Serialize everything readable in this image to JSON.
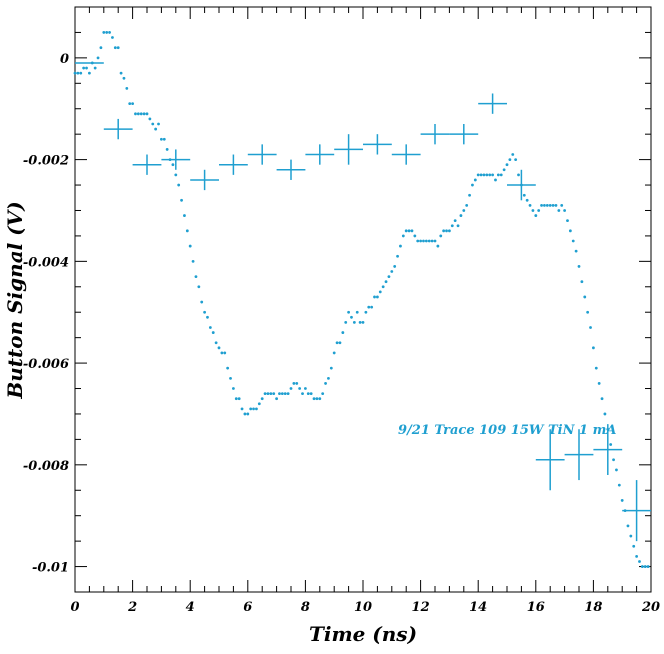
{
  "chart_data": {
    "type": "scatter",
    "title": "",
    "xlabel": "Time (ns)",
    "ylabel": "Button Signal (V)",
    "xlim": [
      0,
      20
    ],
    "ylim": [
      -0.0105,
      0.001
    ],
    "xticks": [
      0,
      2,
      4,
      6,
      8,
      10,
      12,
      14,
      16,
      18,
      20
    ],
    "xtick_labels": [
      "0",
      "2",
      "4",
      "6",
      "8",
      "10",
      "12",
      "14",
      "16",
      "18",
      "20"
    ],
    "yticks": [
      0,
      -0.002,
      -0.004,
      -0.006,
      -0.008,
      -0.01
    ],
    "ytick_labels": [
      "0",
      "-0.002",
      "-0.004",
      "-0.006",
      "-0.008",
      "-0.01"
    ],
    "grid": false,
    "color": "#1f9fd0",
    "annotation": "9/21 Trace 109 15W TiN 1 mA",
    "series": [
      {
        "style": "dots",
        "points": [
          [
            0.0,
            -0.0003
          ],
          [
            0.1,
            -0.0003
          ],
          [
            0.2,
            -0.0003
          ],
          [
            0.3,
            -0.0002
          ],
          [
            0.4,
            -0.0002
          ],
          [
            0.5,
            -0.0003
          ],
          [
            0.6,
            -0.0001
          ],
          [
            0.7,
            -0.0002
          ],
          [
            0.8,
            0.0
          ],
          [
            0.9,
            0.0002
          ],
          [
            1.0,
            0.0005
          ],
          [
            1.1,
            0.0005
          ],
          [
            1.2,
            0.0005
          ],
          [
            1.3,
            0.0004
          ],
          [
            1.4,
            0.0002
          ],
          [
            1.5,
            0.0002
          ],
          [
            1.6,
            -0.0003
          ],
          [
            1.7,
            -0.0004
          ],
          [
            1.8,
            -0.0006
          ],
          [
            1.9,
            -0.0009
          ],
          [
            2.0,
            -0.0009
          ],
          [
            2.1,
            -0.0011
          ],
          [
            2.2,
            -0.0011
          ],
          [
            2.3,
            -0.0011
          ],
          [
            2.4,
            -0.0011
          ],
          [
            2.5,
            -0.0011
          ],
          [
            2.6,
            -0.0012
          ],
          [
            2.7,
            -0.0013
          ],
          [
            2.8,
            -0.0014
          ],
          [
            2.9,
            -0.0013
          ],
          [
            3.0,
            -0.0016
          ],
          [
            3.1,
            -0.0016
          ],
          [
            3.2,
            -0.0018
          ],
          [
            3.3,
            -0.002
          ],
          [
            3.4,
            -0.0021
          ],
          [
            3.5,
            -0.0023
          ],
          [
            3.6,
            -0.0025
          ],
          [
            3.7,
            -0.0028
          ],
          [
            3.8,
            -0.0031
          ],
          [
            3.9,
            -0.0034
          ],
          [
            4.0,
            -0.0037
          ],
          [
            4.1,
            -0.004
          ],
          [
            4.2,
            -0.0043
          ],
          [
            4.3,
            -0.0045
          ],
          [
            4.4,
            -0.0048
          ],
          [
            4.5,
            -0.005
          ],
          [
            4.6,
            -0.0051
          ],
          [
            4.7,
            -0.0053
          ],
          [
            4.8,
            -0.0054
          ],
          [
            4.9,
            -0.0056
          ],
          [
            5.0,
            -0.0057
          ],
          [
            5.1,
            -0.0058
          ],
          [
            5.2,
            -0.0058
          ],
          [
            5.3,
            -0.0061
          ],
          [
            5.4,
            -0.0063
          ],
          [
            5.5,
            -0.0065
          ],
          [
            5.6,
            -0.0067
          ],
          [
            5.7,
            -0.0067
          ],
          [
            5.8,
            -0.0069
          ],
          [
            5.9,
            -0.007
          ],
          [
            6.0,
            -0.007
          ],
          [
            6.1,
            -0.0069
          ],
          [
            6.2,
            -0.0069
          ],
          [
            6.3,
            -0.0069
          ],
          [
            6.4,
            -0.0068
          ],
          [
            6.5,
            -0.0067
          ],
          [
            6.6,
            -0.0066
          ],
          [
            6.7,
            -0.0066
          ],
          [
            6.8,
            -0.0066
          ],
          [
            6.9,
            -0.0066
          ],
          [
            7.0,
            -0.0067
          ],
          [
            7.1,
            -0.0066
          ],
          [
            7.2,
            -0.0066
          ],
          [
            7.3,
            -0.0066
          ],
          [
            7.4,
            -0.0066
          ],
          [
            7.5,
            -0.0065
          ],
          [
            7.6,
            -0.0064
          ],
          [
            7.7,
            -0.0064
          ],
          [
            7.8,
            -0.0065
          ],
          [
            7.9,
            -0.0066
          ],
          [
            8.0,
            -0.0065
          ],
          [
            8.1,
            -0.0066
          ],
          [
            8.2,
            -0.0066
          ],
          [
            8.3,
            -0.0067
          ],
          [
            8.4,
            -0.0067
          ],
          [
            8.5,
            -0.0067
          ],
          [
            8.6,
            -0.0066
          ],
          [
            8.7,
            -0.0064
          ],
          [
            8.8,
            -0.0063
          ],
          [
            8.9,
            -0.0061
          ],
          [
            9.0,
            -0.0058
          ],
          [
            9.1,
            -0.0056
          ],
          [
            9.2,
            -0.0056
          ],
          [
            9.3,
            -0.0054
          ],
          [
            9.4,
            -0.0052
          ],
          [
            9.5,
            -0.005
          ],
          [
            9.6,
            -0.0051
          ],
          [
            9.7,
            -0.0052
          ],
          [
            9.8,
            -0.005
          ],
          [
            9.9,
            -0.0052
          ],
          [
            10.0,
            -0.0052
          ],
          [
            10.1,
            -0.005
          ],
          [
            10.2,
            -0.0049
          ],
          [
            10.3,
            -0.0049
          ],
          [
            10.4,
            -0.0047
          ],
          [
            10.5,
            -0.0047
          ],
          [
            10.6,
            -0.0046
          ],
          [
            10.7,
            -0.0045
          ],
          [
            10.8,
            -0.0044
          ],
          [
            10.9,
            -0.0043
          ],
          [
            11.0,
            -0.0042
          ],
          [
            11.1,
            -0.0041
          ],
          [
            11.2,
            -0.0039
          ],
          [
            11.3,
            -0.0037
          ],
          [
            11.4,
            -0.0035
          ],
          [
            11.5,
            -0.0034
          ],
          [
            11.6,
            -0.0034
          ],
          [
            11.7,
            -0.0034
          ],
          [
            11.8,
            -0.0035
          ],
          [
            11.9,
            -0.0036
          ],
          [
            12.0,
            -0.0036
          ],
          [
            12.1,
            -0.0036
          ],
          [
            12.2,
            -0.0036
          ],
          [
            12.3,
            -0.0036
          ],
          [
            12.4,
            -0.0036
          ],
          [
            12.5,
            -0.0036
          ],
          [
            12.6,
            -0.0037
          ],
          [
            12.7,
            -0.0035
          ],
          [
            12.8,
            -0.0034
          ],
          [
            12.9,
            -0.0034
          ],
          [
            13.0,
            -0.0034
          ],
          [
            13.1,
            -0.0033
          ],
          [
            13.2,
            -0.0032
          ],
          [
            13.3,
            -0.0033
          ],
          [
            13.4,
            -0.0031
          ],
          [
            13.5,
            -0.003
          ],
          [
            13.6,
            -0.0029
          ],
          [
            13.7,
            -0.0027
          ],
          [
            13.8,
            -0.0025
          ],
          [
            13.9,
            -0.0024
          ],
          [
            14.0,
            -0.0023
          ],
          [
            14.1,
            -0.0023
          ],
          [
            14.2,
            -0.0023
          ],
          [
            14.3,
            -0.0023
          ],
          [
            14.4,
            -0.0023
          ],
          [
            14.5,
            -0.0023
          ],
          [
            14.6,
            -0.0024
          ],
          [
            14.7,
            -0.0023
          ],
          [
            14.8,
            -0.0023
          ],
          [
            14.9,
            -0.0022
          ],
          [
            15.0,
            -0.0021
          ],
          [
            15.1,
            -0.002
          ],
          [
            15.2,
            -0.0019
          ],
          [
            15.3,
            -0.002
          ],
          [
            15.4,
            -0.0023
          ],
          [
            15.5,
            -0.0025
          ],
          [
            15.6,
            -0.0027
          ],
          [
            15.7,
            -0.0028
          ],
          [
            15.8,
            -0.0029
          ],
          [
            15.9,
            -0.003
          ],
          [
            16.0,
            -0.0031
          ],
          [
            16.1,
            -0.003
          ],
          [
            16.2,
            -0.0029
          ],
          [
            16.3,
            -0.0029
          ],
          [
            16.4,
            -0.0029
          ],
          [
            16.5,
            -0.0029
          ],
          [
            16.6,
            -0.0029
          ],
          [
            16.7,
            -0.0029
          ],
          [
            16.8,
            -0.003
          ],
          [
            16.9,
            -0.0029
          ],
          [
            17.0,
            -0.003
          ],
          [
            17.1,
            -0.0032
          ],
          [
            17.2,
            -0.0034
          ],
          [
            17.3,
            -0.0036
          ],
          [
            17.4,
            -0.0038
          ],
          [
            17.5,
            -0.0041
          ],
          [
            17.6,
            -0.0044
          ],
          [
            17.7,
            -0.0047
          ],
          [
            17.8,
            -0.005
          ],
          [
            17.9,
            -0.0053
          ],
          [
            18.0,
            -0.0057
          ],
          [
            18.1,
            -0.0061
          ],
          [
            18.2,
            -0.0064
          ],
          [
            18.3,
            -0.0067
          ],
          [
            18.4,
            -0.007
          ],
          [
            18.5,
            -0.0073
          ],
          [
            18.6,
            -0.0076
          ],
          [
            18.7,
            -0.0079
          ],
          [
            18.8,
            -0.0081
          ],
          [
            18.9,
            -0.0084
          ],
          [
            19.0,
            -0.0087
          ],
          [
            19.1,
            -0.0089
          ],
          [
            19.2,
            -0.0092
          ],
          [
            19.3,
            -0.0094
          ],
          [
            19.4,
            -0.0096
          ],
          [
            19.5,
            -0.0098
          ],
          [
            19.6,
            -0.0099
          ],
          [
            19.7,
            -0.01
          ],
          [
            19.8,
            -0.01
          ],
          [
            19.9,
            -0.01
          ]
        ]
      },
      {
        "style": "error-crosses",
        "points": [
          {
            "x": 0.5,
            "y": -0.0001,
            "xerr": 0.5,
            "yerr": 0.0
          },
          {
            "x": 1.5,
            "y": -0.0014,
            "xerr": 0.5,
            "yerr": 0.0002
          },
          {
            "x": 2.5,
            "y": -0.0021,
            "xerr": 0.5,
            "yerr": 0.0002
          },
          {
            "x": 3.5,
            "y": -0.002,
            "xerr": 0.5,
            "yerr": 0.0002
          },
          {
            "x": 4.5,
            "y": -0.0024,
            "xerr": 0.5,
            "yerr": 0.0002
          },
          {
            "x": 5.5,
            "y": -0.0021,
            "xerr": 0.5,
            "yerr": 0.0002
          },
          {
            "x": 6.5,
            "y": -0.0019,
            "xerr": 0.5,
            "yerr": 0.0002
          },
          {
            "x": 7.5,
            "y": -0.0022,
            "xerr": 0.5,
            "yerr": 0.0002
          },
          {
            "x": 8.5,
            "y": -0.0019,
            "xerr": 0.5,
            "yerr": 0.0002
          },
          {
            "x": 9.5,
            "y": -0.0018,
            "xerr": 0.5,
            "yerr": 0.0003
          },
          {
            "x": 10.5,
            "y": -0.0017,
            "xerr": 0.5,
            "yerr": 0.0002
          },
          {
            "x": 11.5,
            "y": -0.0019,
            "xerr": 0.5,
            "yerr": 0.0002
          },
          {
            "x": 12.5,
            "y": -0.0015,
            "xerr": 0.5,
            "yerr": 0.0002
          },
          {
            "x": 13.5,
            "y": -0.0015,
            "xerr": 0.5,
            "yerr": 0.0002
          },
          {
            "x": 14.5,
            "y": -0.0009,
            "xerr": 0.5,
            "yerr": 0.0002
          },
          {
            "x": 15.5,
            "y": -0.0025,
            "xerr": 0.5,
            "yerr": 0.0003
          },
          {
            "x": 16.5,
            "y": -0.0079,
            "xerr": 0.5,
            "yerr": 0.0006
          },
          {
            "x": 17.5,
            "y": -0.0078,
            "xerr": 0.5,
            "yerr": 0.0005
          },
          {
            "x": 18.5,
            "y": -0.0077,
            "xerr": 0.5,
            "yerr": 0.0005
          },
          {
            "x": 19.5,
            "y": -0.0089,
            "xerr": 0.5,
            "yerr": 0.0006
          }
        ]
      }
    ]
  }
}
